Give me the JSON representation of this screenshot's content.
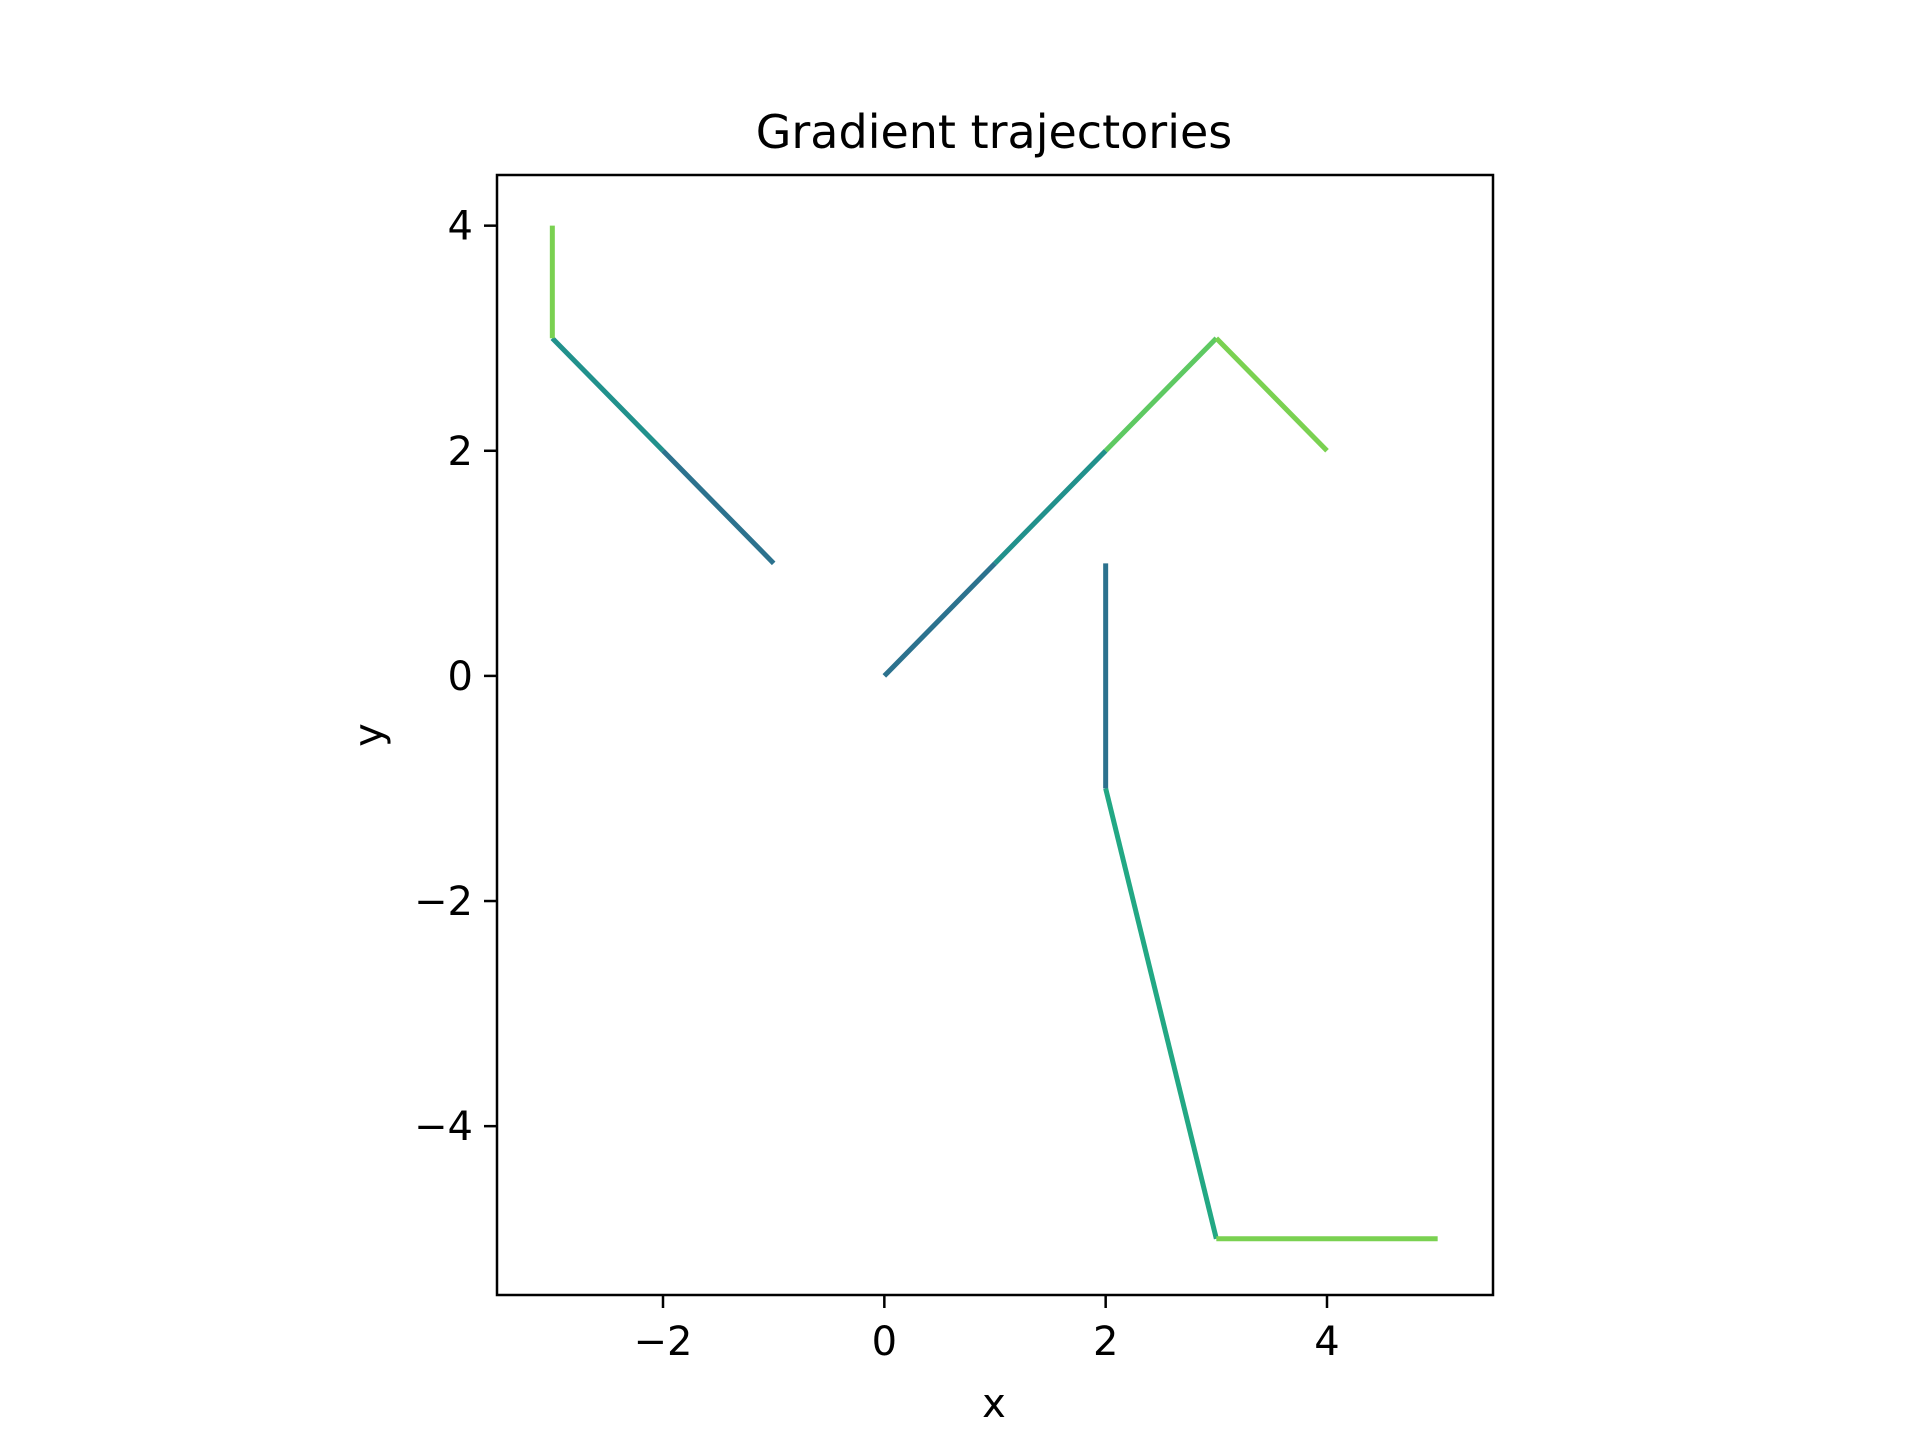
{
  "chart_data": {
    "type": "line",
    "title": "Gradient trajectories",
    "xlabel": "x",
    "ylabel": "y",
    "xlim": [
      -3.5,
      5.5
    ],
    "ylim": [
      -5.5,
      4.45
    ],
    "xticks": [
      -2,
      0,
      2,
      4
    ],
    "yticks": [
      -4,
      -2,
      0,
      2,
      4
    ],
    "xtick_labels": [
      "−2",
      "0",
      "2",
      "4"
    ],
    "ytick_labels": [
      "−4",
      "−2",
      "0",
      "2",
      "4"
    ],
    "grid": false,
    "series": [
      {
        "points": [
          [
            -1,
            1
          ],
          [
            -2,
            2
          ],
          [
            -3,
            3
          ],
          [
            -3,
            4
          ]
        ],
        "segment_colors": [
          "#2c728e",
          "#21918c",
          "#7ad151"
        ]
      },
      {
        "points": [
          [
            0,
            0
          ],
          [
            1,
            1
          ],
          [
            2,
            2
          ],
          [
            3,
            3
          ],
          [
            4,
            2
          ]
        ],
        "segment_colors": [
          "#2c728e",
          "#21918c",
          "#5ec962",
          "#7ad151"
        ]
      },
      {
        "points": [
          [
            2,
            1
          ],
          [
            2,
            -1
          ],
          [
            3,
            -5
          ],
          [
            5,
            -5
          ]
        ],
        "segment_colors": [
          "#2c728e",
          "#22a884",
          "#7ad151"
        ]
      }
    ]
  }
}
